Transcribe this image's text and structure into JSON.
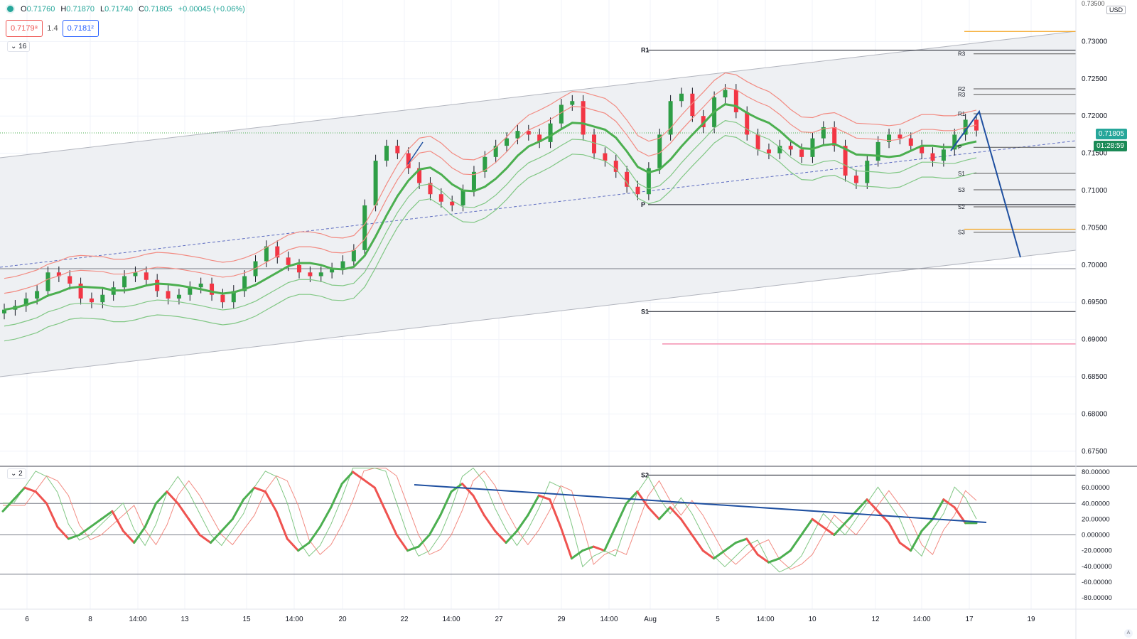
{
  "header": {
    "open_label": "O",
    "open": "0.71760",
    "high_label": "H",
    "high": "0.71870",
    "low_label": "L",
    "low": "0.71740",
    "close_label": "C",
    "close": "0.71805",
    "change": "+0.00045 (+0.06%)",
    "sell_price": "0.7179⁸",
    "spread": "1.4",
    "buy_price": "0.7181²",
    "main_collapse": "16",
    "osc_collapse": "2"
  },
  "price_axis": {
    "currency": "USD",
    "top_partial": "0.73500",
    "ticks": [
      "0.73000",
      "0.72500",
      "0.72000",
      "0.71500",
      "0.71000",
      "0.70500",
      "0.70000",
      "0.69500",
      "0.69000",
      "0.68500",
      "0.68000",
      "0.67500"
    ],
    "last_price": "0.71805",
    "countdown": "01:28:59"
  },
  "osc_axis": {
    "ticks": [
      "80.00000",
      "60.00000",
      "40.00000",
      "20.00000",
      "0.000000",
      "-20.00000",
      "-40.00000",
      "-60.00000",
      "-80.00000"
    ]
  },
  "time_axis": {
    "labels": [
      "6",
      "8",
      "14:00",
      "13",
      "15",
      "14:00",
      "20",
      "22",
      "14:00",
      "27",
      "29",
      "14:00",
      "Aug",
      "5",
      "14:00",
      "10",
      "12",
      "14:00",
      "17",
      "19"
    ]
  },
  "pivots": {
    "left": [
      {
        "label": "R1",
        "price": 0.72885
      },
      {
        "label": "P",
        "price": 0.7081
      },
      {
        "label": "S1",
        "price": 0.69375
      },
      {
        "label": "S2",
        "price": 0.6718
      }
    ],
    "right": [
      {
        "label": "R3",
        "price": 0.72835
      },
      {
        "label": "R2",
        "price": 0.72365
      },
      {
        "label": "R3",
        "price": 0.7229
      },
      {
        "label": "R1",
        "price": 0.7203
      },
      {
        "label": "P",
        "price": 0.7158
      },
      {
        "label": "S1",
        "price": 0.7123
      },
      {
        "label": "S3",
        "price": 0.7101
      },
      {
        "label": "S2",
        "price": 0.7078
      },
      {
        "label": "S3",
        "price": 0.7044
      }
    ],
    "orange_top": 0.73135,
    "orange_low": 0.7048,
    "pink": 0.6894,
    "horizontal_support": 0.6995
  },
  "colors": {
    "up": "#26a69a",
    "candle_up": "#2e9e46",
    "candle_down": "#f23645",
    "ma_green": "#4caf50",
    "ma_red": "#ef5350",
    "band_red": "#f28b82",
    "band_green": "#81c784",
    "trend_blue": "#1e4fa0",
    "channel_fill": "#eef0f3",
    "grid": "#f0f3fa"
  },
  "chart_data": {
    "type": "candlestick",
    "symbol_quote": "USD",
    "ylim": [
      0.6725,
      0.735
    ],
    "osc_ylim": [
      -90,
      90
    ],
    "closes": [
      0.694,
      0.6945,
      0.6955,
      0.6965,
      0.699,
      0.6985,
      0.6975,
      0.6955,
      0.695,
      0.696,
      0.697,
      0.6985,
      0.699,
      0.698,
      0.6965,
      0.6955,
      0.696,
      0.697,
      0.6975,
      0.696,
      0.695,
      0.6965,
      0.6985,
      0.7005,
      0.7025,
      0.701,
      0.7,
      0.699,
      0.6985,
      0.699,
      0.6995,
      0.7005,
      0.702,
      0.708,
      0.714,
      0.716,
      0.715,
      0.713,
      0.711,
      0.7095,
      0.7085,
      0.708,
      0.71,
      0.7125,
      0.7145,
      0.716,
      0.717,
      0.718,
      0.7175,
      0.7165,
      0.719,
      0.7215,
      0.722,
      0.7175,
      0.715,
      0.714,
      0.7125,
      0.7105,
      0.7095,
      0.713,
      0.7175,
      0.722,
      0.723,
      0.72,
      0.7185,
      0.7225,
      0.7235,
      0.7205,
      0.7175,
      0.7155,
      0.715,
      0.716,
      0.7155,
      0.7145,
      0.717,
      0.7185,
      0.716,
      0.712,
      0.711,
      0.714,
      0.7165,
      0.7175,
      0.717,
      0.716,
      0.715,
      0.714,
      0.7155,
      0.7175,
      0.7195,
      0.71805
    ],
    "osc_main": [
      30,
      45,
      60,
      55,
      40,
      10,
      -5,
      0,
      10,
      20,
      30,
      5,
      -10,
      10,
      40,
      55,
      40,
      20,
      0,
      -10,
      5,
      20,
      45,
      60,
      55,
      30,
      -5,
      -20,
      -10,
      10,
      35,
      65,
      80,
      70,
      60,
      30,
      0,
      -20,
      -15,
      0,
      25,
      55,
      65,
      50,
      25,
      5,
      -10,
      5,
      25,
      50,
      45,
      10,
      -30,
      -20,
      -15,
      -20,
      10,
      40,
      55,
      35,
      20,
      35,
      20,
      0,
      -20,
      -30,
      -20,
      -10,
      -5,
      -25,
      -35,
      -30,
      -20,
      0,
      20,
      10,
      0,
      15,
      30,
      45,
      30,
      15,
      -10,
      -20,
      5,
      20,
      45,
      35,
      15,
      15
    ]
  }
}
